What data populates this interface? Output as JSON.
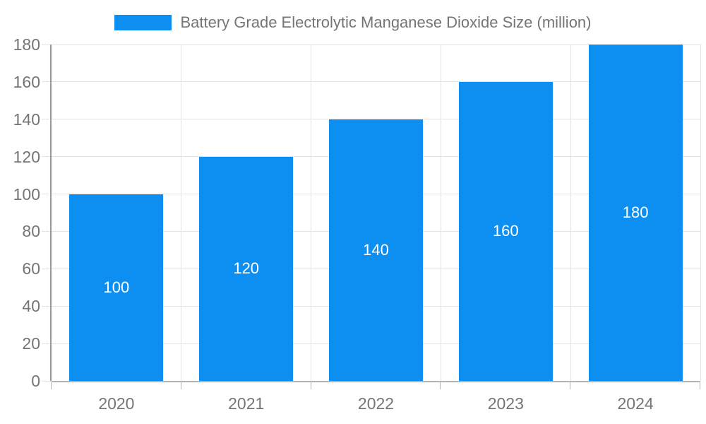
{
  "legend": {
    "label": "Battery Grade Electrolytic Manganese Dioxide Size (million)"
  },
  "colors": {
    "bar": "#0d8ff2",
    "bar_label_text": "#ffffff",
    "grid_line": "#e3e3e3",
    "axis_line": "#b3b3b3",
    "y_axis_line": "#999999",
    "tick_label_text": "#757575",
    "legend_text": "#757575",
    "background": "#ffffff"
  },
  "chart_data": {
    "type": "bar",
    "title": "Battery Grade Electrolytic Manganese Dioxide Size (million)",
    "categories": [
      "2020",
      "2021",
      "2022",
      "2023",
      "2024"
    ],
    "values": [
      100,
      120,
      140,
      160,
      180
    ],
    "bar_value_labels": [
      "100",
      "120",
      "140",
      "160",
      "180"
    ],
    "xlabel": "",
    "ylabel": "",
    "ylim": [
      0,
      180
    ],
    "ytick_step": 20,
    "yticks": [
      0,
      20,
      40,
      60,
      80,
      100,
      120,
      140,
      160,
      180
    ],
    "grid": true,
    "legend_position": "top-center",
    "bar_label_position": "center"
  }
}
